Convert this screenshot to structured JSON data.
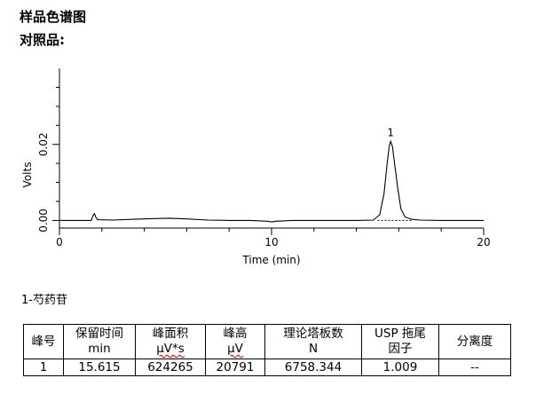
{
  "page": {
    "title": "样品色谱图",
    "subtitle": "对照品:",
    "compound_label": "1-芍药苷"
  },
  "chart_data": {
    "type": "line",
    "xlabel": "Time (min)",
    "ylabel": "Volts",
    "xlim": [
      0,
      20
    ],
    "ylim": [
      -0.002,
      0.04
    ],
    "xticks": [
      0,
      10,
      20
    ],
    "yticks": [
      0.0,
      0.02
    ],
    "ytick_labels": [
      "0.00",
      "0.02"
    ],
    "grid": false,
    "peak_label": "1",
    "series": [
      {
        "x": [
          0,
          1.5,
          1.58,
          1.65,
          1.72,
          1.8,
          2.5,
          3.5,
          4.5,
          5.2,
          6.0,
          7.0,
          8.0,
          9.0,
          9.8,
          10.0,
          10.2,
          11.0,
          12.5,
          14.0,
          14.8,
          15.1,
          15.3,
          15.45,
          15.55,
          15.615,
          15.7,
          15.8,
          15.95,
          16.1,
          16.3,
          16.6,
          17.0,
          18.0,
          20.0
        ],
        "y": [
          0.0,
          0.0,
          0.0012,
          0.0018,
          0.0008,
          0.0002,
          0.0001,
          0.0003,
          0.0005,
          0.0006,
          0.0004,
          0.0001,
          0.0,
          0.0,
          -0.0002,
          -0.0004,
          -0.0002,
          0.0,
          0.0,
          0.0,
          0.0001,
          0.0015,
          0.007,
          0.015,
          0.0195,
          0.0208,
          0.0195,
          0.015,
          0.0085,
          0.003,
          0.0009,
          0.0003,
          0.0001,
          0.0,
          0.0
        ]
      }
    ],
    "baseline": {
      "x": [
        15.0,
        16.6
      ],
      "y": [
        0.0,
        0.0
      ]
    }
  },
  "table": {
    "headers": [
      [
        "峰号"
      ],
      [
        "保留时间",
        "min"
      ],
      [
        "峰面积",
        "μV*s"
      ],
      [
        "峰高",
        "μV"
      ],
      [
        "理论塔板数",
        "N"
      ],
      [
        "USP 拖尾",
        "因子"
      ],
      [
        "分离度"
      ]
    ],
    "rows": [
      [
        "1",
        "15.615",
        "624265",
        "20791",
        "6758.344",
        "1.009",
        "--"
      ]
    ]
  }
}
